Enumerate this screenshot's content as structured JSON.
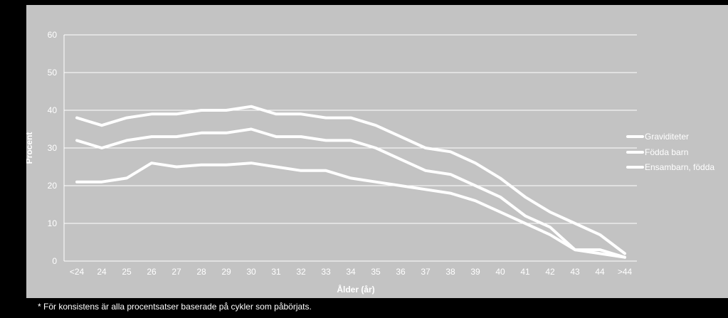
{
  "chart_data": {
    "type": "line",
    "title": "",
    "xlabel": "Ålder (år)",
    "ylabel": "Procent",
    "ylim": [
      0,
      60
    ],
    "yticks": [
      0,
      10,
      20,
      30,
      40,
      50,
      60
    ],
    "grid": true,
    "legend_position": "right",
    "categories": [
      "<24",
      "24",
      "25",
      "26",
      "27",
      "28",
      "29",
      "30",
      "31",
      "32",
      "33",
      "34",
      "35",
      "36",
      "37",
      "38",
      "39",
      "40",
      "41",
      "42",
      "43",
      "44",
      ">44"
    ],
    "series": [
      {
        "name": "Graviditeter",
        "color": "#ffffff",
        "values": [
          38,
          36,
          38,
          39,
          39,
          40,
          40,
          41,
          39,
          39,
          38,
          38,
          36,
          33,
          30,
          29,
          26,
          22,
          17,
          13,
          10,
          7,
          2
        ]
      },
      {
        "name": "Födda barn",
        "color": "#ffffff",
        "values": [
          32,
          30,
          32,
          33,
          33,
          34,
          34,
          35,
          33,
          33,
          32,
          32,
          30,
          27,
          24,
          23,
          20,
          17,
          12,
          9,
          3,
          3,
          1
        ]
      },
      {
        "name": "Ensambarn, födda",
        "color": "#ffffff",
        "values": [
          21,
          21,
          22,
          26,
          25,
          25.5,
          25.5,
          26,
          25,
          24,
          24,
          22,
          21,
          20,
          19,
          18,
          16,
          13,
          10,
          7,
          3,
          2,
          1
        ]
      }
    ]
  },
  "footnote": "* För konsistens är alla procentsatser baserade på cykler som påbörjats."
}
